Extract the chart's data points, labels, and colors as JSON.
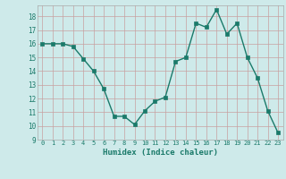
{
  "x": [
    0,
    1,
    2,
    3,
    4,
    5,
    6,
    7,
    8,
    9,
    10,
    11,
    12,
    13,
    14,
    15,
    16,
    17,
    18,
    19,
    20,
    21,
    22,
    23
  ],
  "y": [
    16.0,
    16.0,
    16.0,
    15.8,
    14.9,
    14.0,
    12.7,
    10.7,
    10.7,
    10.1,
    11.1,
    11.8,
    12.1,
    14.7,
    15.0,
    17.5,
    17.2,
    18.5,
    16.7,
    17.5,
    15.0,
    13.5,
    11.1,
    9.5
  ],
  "title": "",
  "xlabel": "Humidex (Indice chaleur)",
  "ylabel": "",
  "xlim": [
    -0.5,
    23.5
  ],
  "ylim": [
    9,
    18.8
  ],
  "yticks": [
    9,
    10,
    11,
    12,
    13,
    14,
    15,
    16,
    17,
    18
  ],
  "xticks": [
    0,
    1,
    2,
    3,
    4,
    5,
    6,
    7,
    8,
    9,
    10,
    11,
    12,
    13,
    14,
    15,
    16,
    17,
    18,
    19,
    20,
    21,
    22,
    23
  ],
  "line_color": "#1a7a6a",
  "marker_color": "#1a7a6a",
  "bg_color": "#ceeaea",
  "grid_color_major": "#c8a0a0",
  "grid_color_minor": "#c8c8c8",
  "label_color": "#1a7a6a",
  "tick_color": "#1a7a6a"
}
